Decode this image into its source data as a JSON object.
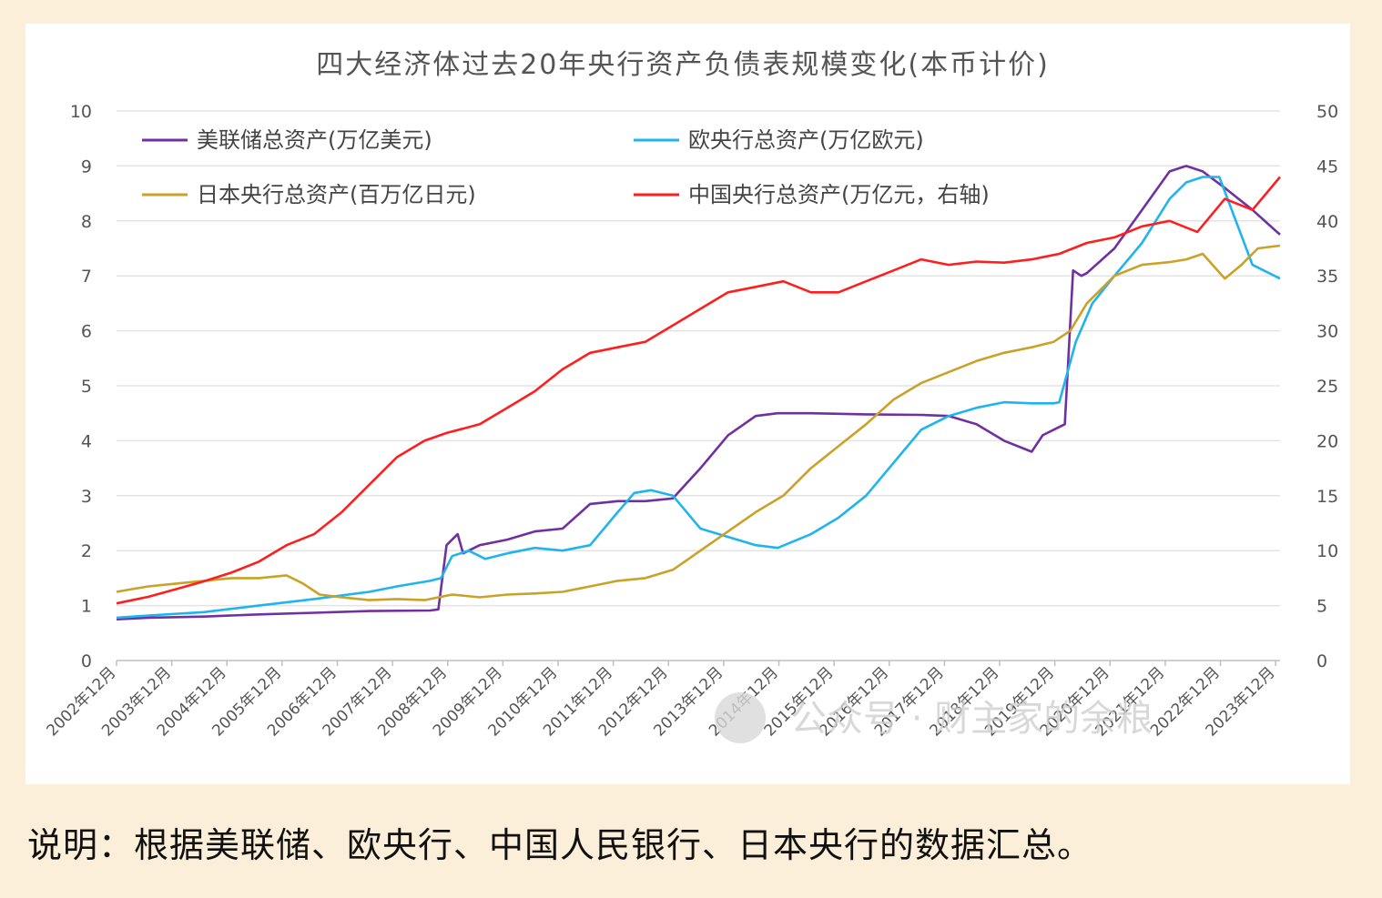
{
  "caption": "说明：根据美联储、欧央行、中国人民银行、日本央行的数据汇总。",
  "watermark": "公众号 · 财主家的余粮",
  "chart_data": {
    "type": "line",
    "title": "四大经济体过去20年央行资产负债表规模变化(本币计价)",
    "y_left": {
      "min": 0,
      "max": 10,
      "ticks": [
        "0",
        "1",
        "2",
        "3",
        "4",
        "5",
        "6",
        "7",
        "8",
        "9",
        "10"
      ]
    },
    "y_right": {
      "min": 0,
      "max": 50,
      "ticks": [
        "0",
        "5",
        "10",
        "15",
        "20",
        "25",
        "30",
        "35",
        "40",
        "45",
        "50"
      ]
    },
    "x_ticks": [
      "2002年12月",
      "2003年12月",
      "2004年12月",
      "2005年12月",
      "2006年12月",
      "2007年12月",
      "2008年12月",
      "2009年12月",
      "2010年12月",
      "2011年12月",
      "2012年12月",
      "2013年12月",
      "2014年12月",
      "2015年12月",
      "2016年12月",
      "2017年12月",
      "2018年12月",
      "2019年12月",
      "2020年12月",
      "2021年12月",
      "2022年12月",
      "2023年12月"
    ],
    "legend_position": "top-left",
    "grid": true,
    "series": [
      {
        "name": "美联储总资产(万亿美元)",
        "color": "#7030a0",
        "axis": "left",
        "x": [
          2002.92,
          2003.5,
          2004.5,
          2005.5,
          2006.5,
          2007.5,
          2008.6,
          2008.75,
          2008.9,
          2009.0,
          2009.1,
          2009.2,
          2009.5,
          2010.0,
          2010.5,
          2011.0,
          2011.5,
          2012.0,
          2012.5,
          2013.0,
          2013.5,
          2014.0,
          2014.5,
          2014.9,
          2015.5,
          2016.5,
          2017.5,
          2018.0,
          2018.5,
          2019.0,
          2019.5,
          2019.7,
          2019.9,
          2020.1,
          2020.25,
          2020.4,
          2020.5,
          2021.0,
          2021.5,
          2022.0,
          2022.3,
          2022.6,
          2023.0,
          2023.5,
          2024.0
        ],
        "y": [
          0.75,
          0.78,
          0.8,
          0.84,
          0.87,
          0.9,
          0.91,
          0.93,
          2.1,
          2.2,
          2.3,
          1.95,
          2.1,
          2.2,
          2.35,
          2.4,
          2.85,
          2.9,
          2.9,
          2.95,
          3.5,
          4.1,
          4.45,
          4.5,
          4.5,
          4.48,
          4.47,
          4.45,
          4.3,
          4.0,
          3.8,
          4.1,
          4.2,
          4.3,
          7.1,
          7.0,
          7.05,
          7.5,
          8.2,
          8.9,
          9.0,
          8.9,
          8.6,
          8.2,
          7.75
        ]
      },
      {
        "name": "欧央行总资产(万亿欧元)",
        "color": "#1fb4ee",
        "axis": "left",
        "x": [
          2002.92,
          2003.5,
          2004.5,
          2005.5,
          2006.5,
          2007.5,
          2008.0,
          2008.6,
          2008.8,
          2009.0,
          2009.3,
          2009.6,
          2010.0,
          2010.5,
          2011.0,
          2011.5,
          2012.0,
          2012.3,
          2012.6,
          2013.0,
          2013.5,
          2014.0,
          2014.5,
          2014.9,
          2015.5,
          2016.0,
          2016.5,
          2017.0,
          2017.5,
          2018.0,
          2018.5,
          2019.0,
          2019.5,
          2019.9,
          2020.0,
          2020.3,
          2020.6,
          2021.0,
          2021.5,
          2022.0,
          2022.3,
          2022.6,
          2022.9,
          2023.2,
          2023.5,
          2024.0
        ],
        "y": [
          0.78,
          0.82,
          0.88,
          1.0,
          1.12,
          1.25,
          1.35,
          1.45,
          1.5,
          1.9,
          2.0,
          1.85,
          1.95,
          2.05,
          2.0,
          2.1,
          2.7,
          3.05,
          3.1,
          3.0,
          2.4,
          2.25,
          2.1,
          2.05,
          2.3,
          2.6,
          3.0,
          3.6,
          4.2,
          4.45,
          4.6,
          4.7,
          4.68,
          4.68,
          4.7,
          5.8,
          6.5,
          7.0,
          7.6,
          8.4,
          8.7,
          8.8,
          8.8,
          8.0,
          7.2,
          6.95
        ]
      },
      {
        "name": "日本央行总资产(百万亿日元)",
        "color": "#c9a227",
        "axis": "left",
        "x": [
          2002.92,
          2003.2,
          2003.5,
          2004.0,
          2004.5,
          2005.0,
          2005.5,
          2006.0,
          2006.3,
          2006.6,
          2007.0,
          2007.5,
          2008.0,
          2008.5,
          2009.0,
          2009.5,
          2010.0,
          2010.5,
          2011.0,
          2011.5,
          2012.0,
          2012.5,
          2013.0,
          2013.5,
          2014.0,
          2014.5,
          2015.0,
          2015.5,
          2016.0,
          2016.5,
          2017.0,
          2017.5,
          2018.0,
          2018.5,
          2019.0,
          2019.5,
          2019.9,
          2020.2,
          2020.5,
          2021.0,
          2021.5,
          2022.0,
          2022.3,
          2022.6,
          2023.0,
          2023.3,
          2023.6,
          2024.0
        ],
        "y": [
          1.25,
          1.3,
          1.35,
          1.4,
          1.45,
          1.5,
          1.5,
          1.55,
          1.4,
          1.2,
          1.15,
          1.1,
          1.12,
          1.1,
          1.2,
          1.15,
          1.2,
          1.22,
          1.25,
          1.35,
          1.45,
          1.5,
          1.65,
          2.0,
          2.35,
          2.7,
          3.0,
          3.5,
          3.9,
          4.3,
          4.75,
          5.05,
          5.25,
          5.45,
          5.6,
          5.7,
          5.8,
          6.0,
          6.5,
          7.0,
          7.2,
          7.25,
          7.3,
          7.4,
          6.95,
          7.2,
          7.5,
          7.55
        ]
      },
      {
        "name": "中国央行总资产(万亿元，右轴)",
        "color": "#ff1e1e",
        "axis": "right",
        "x": [
          2002.92,
          2003.5,
          2004.0,
          2004.5,
          2005.0,
          2005.5,
          2006.0,
          2006.5,
          2007.0,
          2007.5,
          2008.0,
          2008.5,
          2008.9,
          2009.5,
          2010.0,
          2010.5,
          2011.0,
          2011.5,
          2012.0,
          2012.5,
          2013.0,
          2013.5,
          2014.0,
          2014.5,
          2015.0,
          2015.5,
          2016.0,
          2016.5,
          2017.0,
          2017.5,
          2018.0,
          2018.5,
          2019.0,
          2019.5,
          2020.0,
          2020.5,
          2021.0,
          2021.5,
          2022.0,
          2022.5,
          2023.0,
          2023.5,
          2024.0
        ],
        "y": [
          5.2,
          5.8,
          6.5,
          7.2,
          8.0,
          9.0,
          10.5,
          11.5,
          13.5,
          16.0,
          18.5,
          20.0,
          20.7,
          21.5,
          23.0,
          24.5,
          26.5,
          28.0,
          28.5,
          29.0,
          30.5,
          32.0,
          33.5,
          34.0,
          34.5,
          33.5,
          33.5,
          34.5,
          35.5,
          36.5,
          36.0,
          36.3,
          36.2,
          36.5,
          37.0,
          38.0,
          38.5,
          39.5,
          40.0,
          39.0,
          42.0,
          41.0,
          44.0
        ]
      }
    ]
  }
}
